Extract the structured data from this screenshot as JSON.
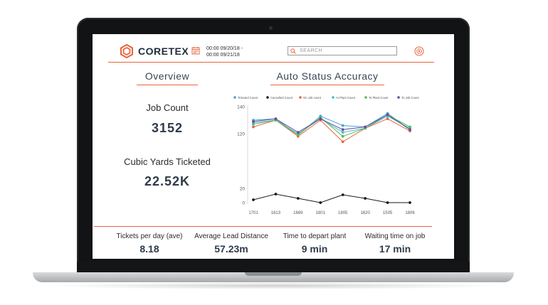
{
  "header": {
    "logo_text": "CORETEX",
    "date_range_line1": "00:00 09/20/18 -",
    "date_range_line2": "00:00 09/21/18",
    "search_placeholder": "SEARCH"
  },
  "overview": {
    "title": "Overview",
    "job_count_label": "Job Count",
    "job_count_value": "3152",
    "cubic_yards_label": "Cubic Yards Ticketed",
    "cubic_yards_value": "22.52K"
  },
  "accuracy": {
    "title": "Auto Status Accuracy"
  },
  "kpis": [
    {
      "label": "Tickets per day (ave)",
      "value": "8.18"
    },
    {
      "label": "Average Lead Distance",
      "value": "57.23m"
    },
    {
      "label": "Time to depart plant",
      "value": "9 min"
    },
    {
      "label": "Waiting time on job",
      "value": "17 min"
    }
  ],
  "colors": {
    "accent": "#e8643b",
    "text_dark": "#2f3b4a"
  },
  "chart_data": {
    "type": "line",
    "categories": [
      "1701",
      "1613",
      "1669",
      "1801",
      "1805",
      "1620",
      "1505",
      "1806"
    ],
    "ylim": [
      0,
      140
    ],
    "yticks": [
      0,
      20,
      120,
      140
    ],
    "grid": false,
    "legend": "top",
    "series": [
      {
        "name": "Ticketed Count",
        "color": "#4a9fe0",
        "values": [
          130,
          131,
          119,
          133,
          126,
          125,
          135,
          123
        ]
      },
      {
        "name": "Cancelled Count",
        "color": "#1a1a1a",
        "values": [
          4,
          12,
          6,
          0,
          11,
          6,
          0,
          0
        ]
      },
      {
        "name": "On Job count",
        "color": "#e8643b",
        "values": [
          125,
          130,
          118,
          130,
          114,
          124,
          131,
          122
        ]
      },
      {
        "name": "At Plant Count",
        "color": "#3ec1c4",
        "values": [
          127,
          130,
          120,
          131,
          121,
          124,
          133,
          124
        ]
      },
      {
        "name": "To Plant Count",
        "color": "#5ab95e",
        "values": [
          128,
          130,
          119,
          132,
          118,
          124,
          134,
          125
        ]
      },
      {
        "name": "To Job Count",
        "color": "#6a4a9e",
        "values": [
          129,
          131,
          121,
          131,
          123,
          125,
          134,
          123
        ]
      }
    ]
  }
}
